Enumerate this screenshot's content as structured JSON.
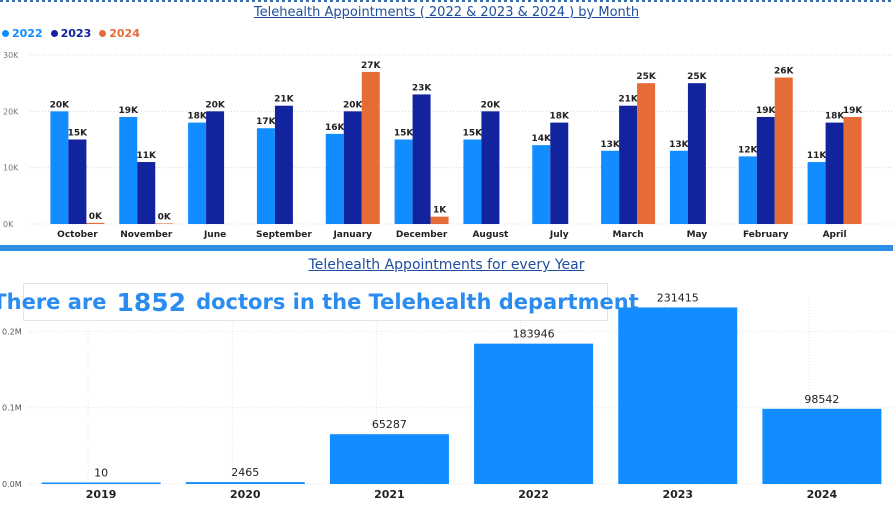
{
  "monthly": {
    "title": "Telehealth Appointments ( 2022 & 2023 & 2024 ) by Month",
    "legend": [
      {
        "label": "2022",
        "color": "#118dff"
      },
      {
        "label": "2023",
        "color": "#12239e"
      },
      {
        "label": "2024",
        "color": "#e66c37"
      }
    ]
  },
  "yearly": {
    "title": "Telehealth Appointments for every Year",
    "banner": {
      "prefix": "There are",
      "count": "1852",
      "suffix": "doctors in the Telehealth department"
    }
  },
  "chart_data": [
    {
      "type": "bar",
      "title": "Telehealth Appointments ( 2022 & 2023 & 2024 ) by Month",
      "categories": [
        "October",
        "November",
        "June",
        "September",
        "January",
        "December",
        "August",
        "July",
        "March",
        "May",
        "February",
        "April"
      ],
      "series": [
        {
          "name": "2022",
          "color": "#118dff",
          "values": [
            20000,
            19000,
            18000,
            17000,
            16000,
            15000,
            15000,
            14000,
            13000,
            13000,
            12000,
            11000
          ],
          "labels": [
            "20K",
            "19K",
            "18K",
            "17K",
            "16K",
            "15K",
            "15K",
            "14K",
            "13K",
            "13K",
            "12K",
            "11K"
          ]
        },
        {
          "name": "2023",
          "color": "#12239e",
          "values": [
            15000,
            11000,
            20000,
            21000,
            20000,
            23000,
            20000,
            18000,
            21000,
            25000,
            19000,
            18000
          ],
          "labels": [
            "15K",
            "11K",
            "20K",
            "21K",
            "20K",
            "23K",
            "20K",
            "18K",
            "21K",
            "25K",
            "19K",
            "18K"
          ]
        },
        {
          "name": "2024",
          "color": "#e66c37",
          "values": [
            200,
            100,
            null,
            null,
            27000,
            1300,
            null,
            null,
            25000,
            null,
            26000,
            19000
          ],
          "labels": [
            "0K",
            "0K",
            "",
            "",
            "27K",
            "1K",
            "",
            "",
            "25K",
            "",
            "26K",
            "19K"
          ]
        }
      ],
      "ylim": [
        0,
        30000
      ],
      "yticks": [
        0,
        10000,
        20000,
        30000
      ],
      "ytick_labels": [
        "0K",
        "10K",
        "20K",
        "30K"
      ],
      "grid": true,
      "legend_position": "top-left"
    },
    {
      "type": "bar",
      "title": "Telehealth Appointments for every Year",
      "categories": [
        "2019",
        "2020",
        "2021",
        "2022",
        "2023",
        "2024"
      ],
      "series": [
        {
          "color": "#118dff",
          "values": [
            10,
            2465,
            65287,
            183946,
            231415,
            98542
          ],
          "labels": [
            "10",
            "2465",
            "65287",
            "183946",
            "231415",
            "98542"
          ]
        }
      ],
      "ylim": [
        0,
        270000
      ],
      "yticks": [
        0,
        100000,
        200000
      ],
      "ytick_labels": [
        "0.0M",
        "0.1M",
        "0.2M"
      ],
      "grid": true
    }
  ]
}
